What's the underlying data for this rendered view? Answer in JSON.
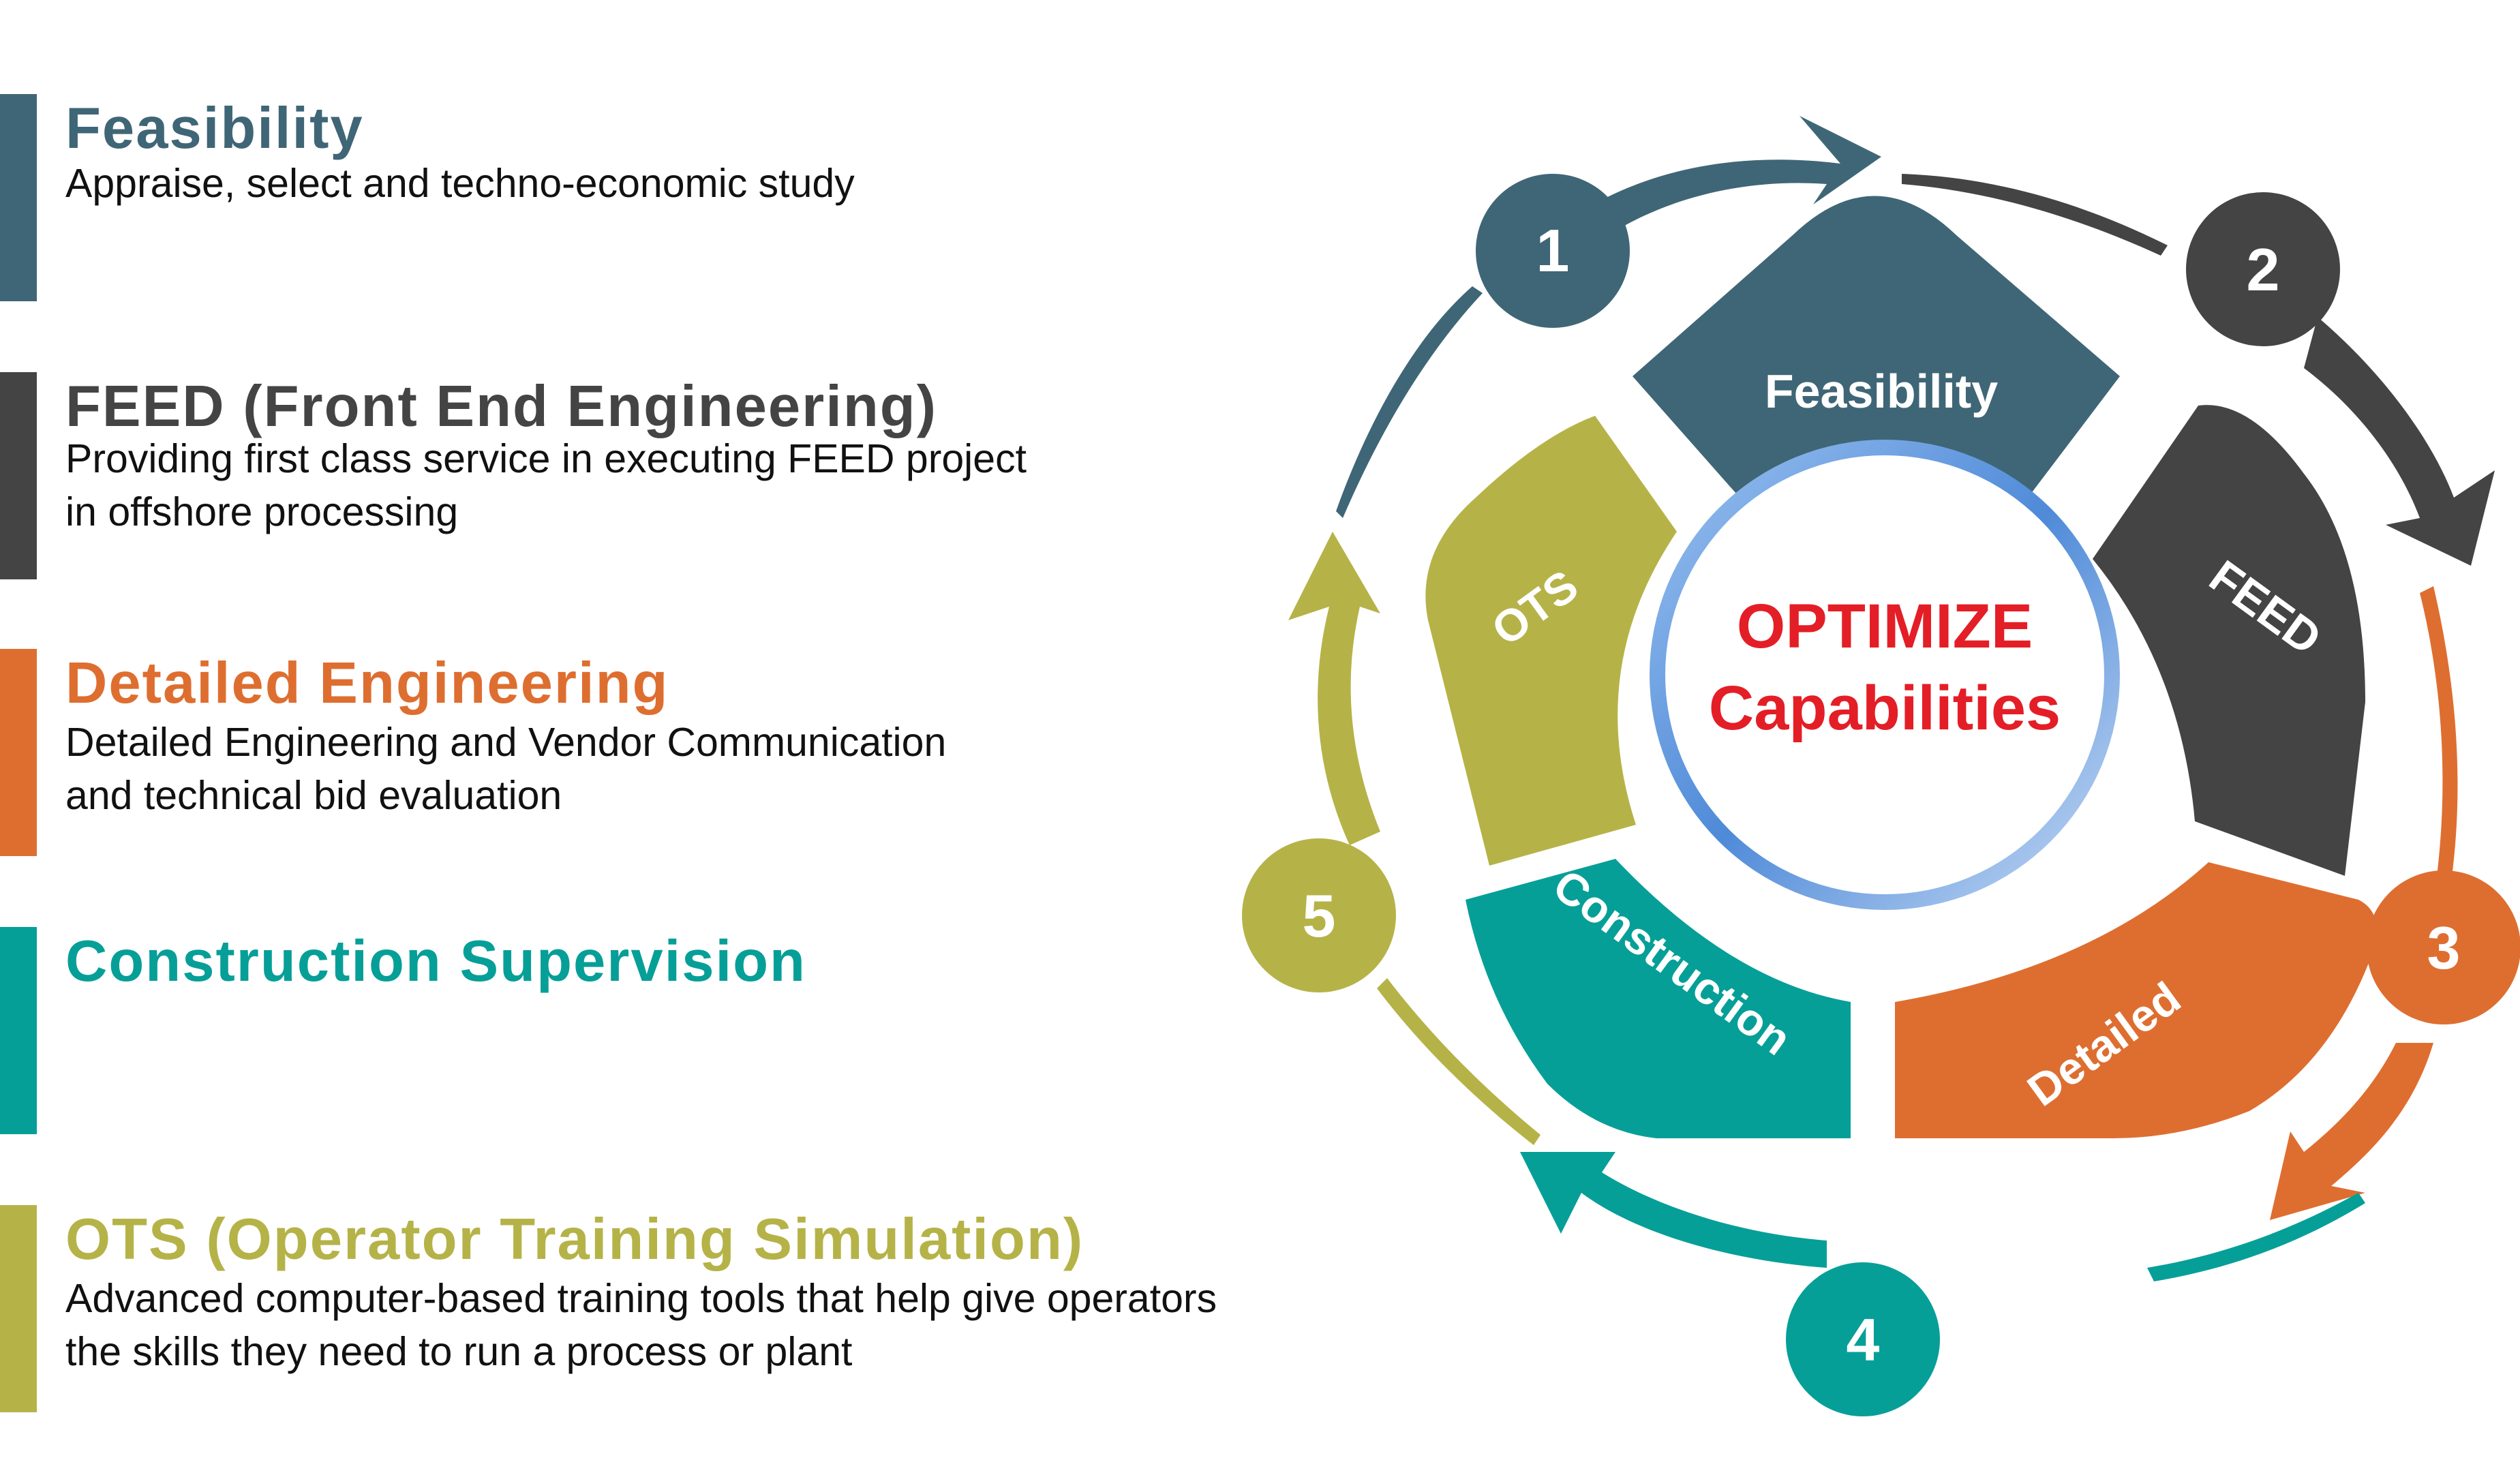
{
  "colors": {
    "feasibility": "#3F6676",
    "feed": "#444444",
    "detailed": "#DE6E30",
    "construction": "#069F98",
    "ots": "#B5B348",
    "center_text": "#E41E26",
    "ring": "#6A9FE0"
  },
  "phases": [
    {
      "title": "Feasibility",
      "lines": [
        "Appraise, select and techno-economic study"
      ]
    },
    {
      "title": "FEED (Front End Engineering)",
      "lines": [
        "Providing first class service in executing FEED project",
        "in offshore processing"
      ]
    },
    {
      "title": "Detailed Engineering",
      "lines": [
        "Detailed Engineering and Vendor Communication",
        "and technical bid evaluation"
      ]
    },
    {
      "title": "Construction Supervision",
      "lines": []
    },
    {
      "title": "OTS (Operator Training Simulation)",
      "lines": [
        "Advanced computer-based training tools that help give operators",
        "the skills they need to run a process or plant"
      ]
    }
  ],
  "cycle": {
    "center": {
      "line1": "OPTIMIZE",
      "line2": "Capabilities"
    },
    "segments": [
      {
        "label": "Feasibility",
        "step": "1"
      },
      {
        "label": "FEED",
        "step": "2"
      },
      {
        "label": "Detailed",
        "step": "3"
      },
      {
        "label": "Construction",
        "step": "4"
      },
      {
        "label": "OTS",
        "step": "5"
      }
    ]
  }
}
